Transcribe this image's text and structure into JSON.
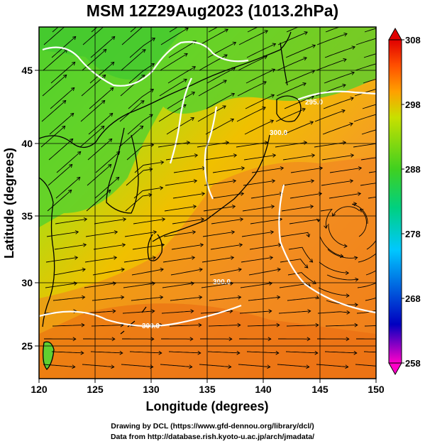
{
  "title": "MSM 12Z29Aug2023 (1013.2hPa)",
  "map": {
    "x_axis_label": "Longitude (degrees)",
    "y_axis_label": "Latitude  (degrees)",
    "lon_range": [
      120,
      150
    ],
    "lat_range": [
      22.5,
      48
    ],
    "x_ticks": [
      "120",
      "125",
      "130",
      "135",
      "140",
      "145",
      "150"
    ],
    "y_ticks": [
      "25",
      "30",
      "35",
      "40",
      "45"
    ],
    "contour_labels": [
      "295.0",
      "300.0",
      "300.0",
      "300.0"
    ]
  },
  "colorbar": {
    "ticks": [
      "308",
      "298",
      "288",
      "278",
      "268",
      "258"
    ],
    "range": [
      258,
      308
    ],
    "colors": [
      "#ff00c8",
      "#0000c0",
      "#00c8ff",
      "#00d080",
      "#40d020",
      "#c8e000",
      "#ffa000",
      "#ff5000",
      "#e00000"
    ]
  },
  "footer": {
    "line1": "Drawing by DCL (https://www.gfd-dennou.org/library/dcl/)",
    "line2": "Data from http://database.rish.kyoto-u.ac.jp/arch/jmadata/"
  }
}
